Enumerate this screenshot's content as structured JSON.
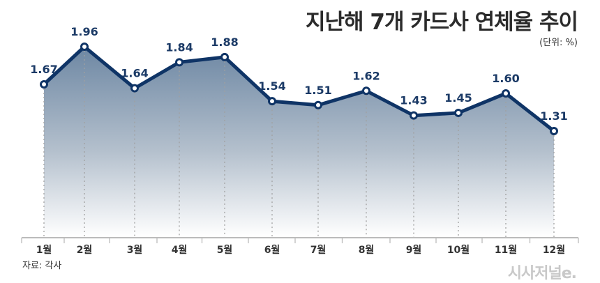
{
  "header": {
    "title": "지난해 7개 카드사 연체율 추이",
    "unit": "(단위: %)"
  },
  "footer": {
    "source": "자료: 각사",
    "logo": "시사저널e."
  },
  "colors": {
    "line": "#0f3466",
    "label": "#1b3a66",
    "area_top": "#6d87a3",
    "area_bottom": "#ffffff",
    "axis": "#bbbbbb",
    "guide": "#a0a0a0"
  },
  "chart_data": {
    "type": "area",
    "title": "지난해 7개 카드사 연체율 추이",
    "unit": "%",
    "xlabel": "",
    "ylabel": "",
    "categories": [
      "1월",
      "2월",
      "3월",
      "4월",
      "5월",
      "6월",
      "7월",
      "8월",
      "9월",
      "10월",
      "11월",
      "12월"
    ],
    "series": [
      {
        "name": "연체율",
        "values": [
          1.67,
          1.96,
          1.64,
          1.84,
          1.88,
          1.54,
          1.51,
          1.62,
          1.43,
          1.45,
          1.6,
          1.31
        ]
      }
    ],
    "data_labels": [
      "1.67",
      "1.96",
      "1.64",
      "1.84",
      "1.88",
      "1.54",
      "1.51",
      "1.62",
      "1.43",
      "1.45",
      "1.60",
      "1.31"
    ],
    "grid": false,
    "legend": "none",
    "source": "자료: 각사"
  }
}
